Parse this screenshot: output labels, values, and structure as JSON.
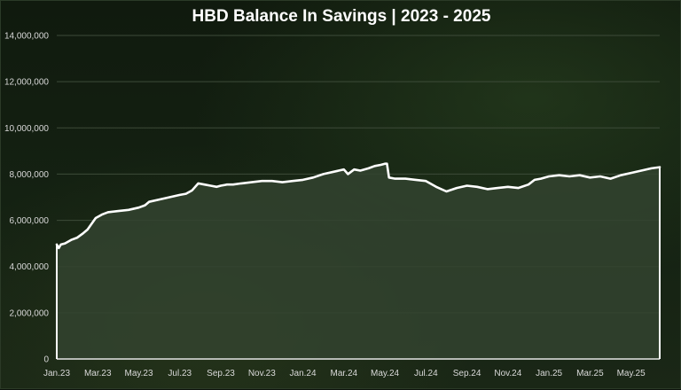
{
  "chart_data": {
    "type": "area",
    "title": "HBD Balance In Savings | 2023 - 2025",
    "xlabel": "",
    "ylabel": "",
    "ylim": [
      0,
      14000000
    ],
    "y_ticks": [
      0,
      2000000,
      4000000,
      6000000,
      8000000,
      10000000,
      12000000,
      14000000
    ],
    "y_tick_labels": [
      "0",
      "2,000,000",
      "4,000,000",
      "6,000,000",
      "8,000,000",
      "10,000,000",
      "12,000,000",
      "14,000,000"
    ],
    "x_tick_labels": [
      "Jan.23",
      "Mar.23",
      "May.23",
      "Jul.23",
      "Sep.23",
      "Nov.23",
      "Jan.24",
      "Mar.24",
      "May.24",
      "Jul.24",
      "Sep.24",
      "Nov.24",
      "Jan.25",
      "Mar.25",
      "May.25"
    ],
    "grid": true,
    "legend": "none",
    "colors": {
      "line": "#ffffff",
      "fill": "#33432f",
      "grid": "#3d4b39",
      "text": "#d9d9d9",
      "title": "#ffffff"
    },
    "series": [
      {
        "x": [
          0,
          0.1,
          0.2,
          0.4,
          0.7,
          1.0,
          1.3,
          1.5,
          1.7,
          1.9,
          2.2,
          2.5,
          3.0,
          3.5,
          4.0,
          4.3,
          4.5,
          5.0,
          5.5,
          6.0,
          6.3,
          6.6,
          6.9,
          7.2,
          7.5,
          7.8,
          8.0,
          8.3,
          8.6,
          9.0,
          9.5,
          10.0,
          10.5,
          11.0,
          11.5,
          12.0,
          12.5,
          13.0,
          13.5,
          14.0,
          14.2,
          14.5,
          14.8,
          15.2,
          15.5,
          15.8,
          16.0,
          16.1,
          16.2,
          16.5,
          17.0,
          17.5,
          18.0,
          18.5,
          19.0,
          19.5,
          20.0,
          20.5,
          21.0,
          21.5,
          22.0,
          22.5,
          23.0,
          23.3,
          23.6,
          24.0,
          24.5,
          25.0,
          25.5,
          26.0,
          26.5,
          27.0,
          27.5,
          28.0,
          28.5,
          29.0,
          29.4
        ],
        "values": [
          4950000,
          4800000,
          4950000,
          5000000,
          5150000,
          5250000,
          5450000,
          5600000,
          5850000,
          6100000,
          6250000,
          6350000,
          6400000,
          6450000,
          6550000,
          6650000,
          6800000,
          6900000,
          7000000,
          7100000,
          7150000,
          7300000,
          7600000,
          7550000,
          7500000,
          7450000,
          7500000,
          7550000,
          7550000,
          7600000,
          7650000,
          7700000,
          7700000,
          7650000,
          7700000,
          7750000,
          7850000,
          8000000,
          8100000,
          8200000,
          8000000,
          8200000,
          8150000,
          8250000,
          8350000,
          8400000,
          8450000,
          8450000,
          7850000,
          7800000,
          7800000,
          7750000,
          7700000,
          7450000,
          7250000,
          7400000,
          7500000,
          7450000,
          7350000,
          7400000,
          7450000,
          7400000,
          7550000,
          7750000,
          7800000,
          7900000,
          7950000,
          7900000,
          7950000,
          7850000,
          7900000,
          7800000,
          7950000,
          8050000,
          8150000,
          8250000,
          8300000
        ]
      }
    ]
  }
}
